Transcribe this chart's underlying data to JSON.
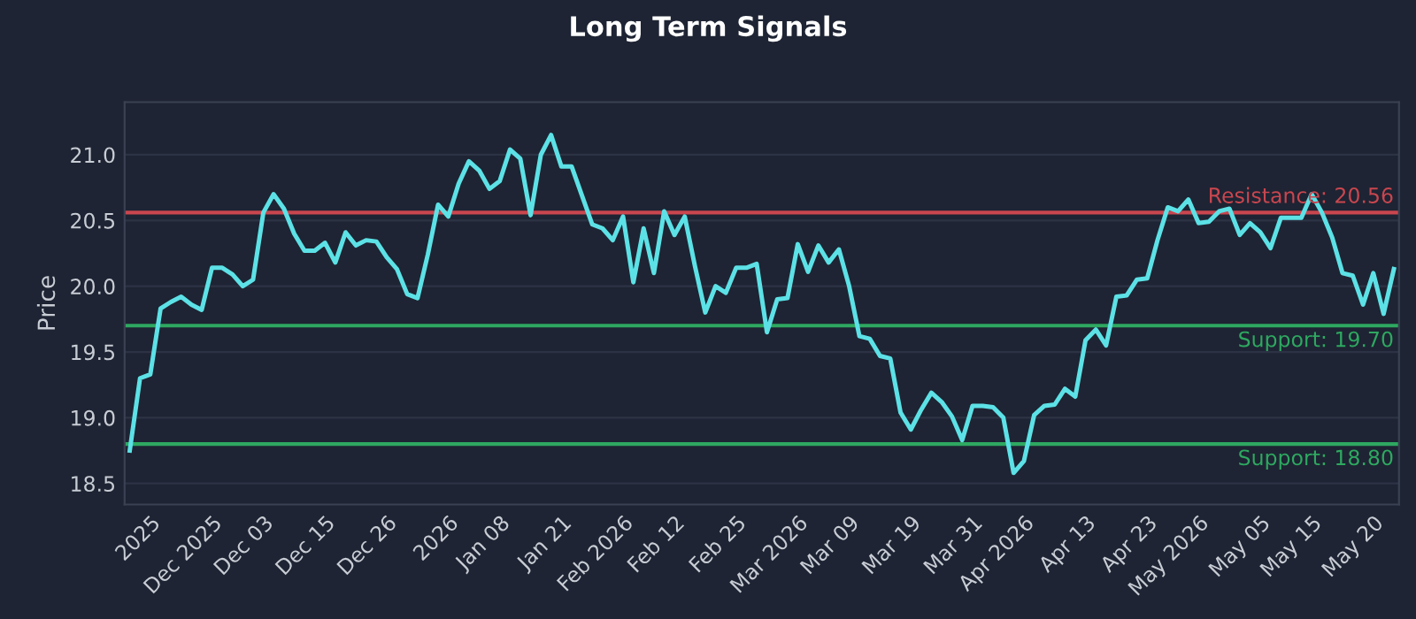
{
  "chart_data": {
    "type": "line",
    "title": "Long Term Signals",
    "ylabel": "Price",
    "categories": [
      null,
      null,
      "2025",
      null,
      null,
      null,
      null,
      null,
      "Dec 2025",
      null,
      null,
      null,
      null,
      "Dec 03",
      null,
      null,
      null,
      null,
      null,
      "Dec 15",
      null,
      null,
      null,
      null,
      null,
      "Dec 26",
      null,
      null,
      null,
      null,
      null,
      "2026",
      null,
      null,
      null,
      null,
      "Jan 08",
      null,
      null,
      null,
      null,
      null,
      "Jan 21",
      null,
      null,
      null,
      null,
      null,
      "Feb 2026",
      null,
      null,
      null,
      null,
      "Feb 12",
      null,
      null,
      null,
      null,
      null,
      "Feb 25",
      null,
      null,
      null,
      null,
      null,
      "Mar 2026",
      null,
      null,
      null,
      null,
      "Mar 09",
      null,
      null,
      null,
      null,
      null,
      "Mar 19",
      null,
      null,
      null,
      null,
      null,
      "Mar 31",
      null,
      null,
      null,
      null,
      "Apr 2026",
      null,
      null,
      null,
      null,
      null,
      "Apr 13",
      null,
      null,
      null,
      null,
      null,
      "Apr 23",
      null,
      null,
      null,
      null,
      "May 2026",
      null,
      null,
      null,
      null,
      null,
      "May 05",
      null,
      null,
      null,
      null,
      "May 15",
      null,
      null,
      null,
      null,
      null,
      "May 20",
      null,
      null
    ],
    "series": [
      {
        "color": "#5ce1e6",
        "values": [
          18.75,
          19.3,
          19.33,
          19.83,
          19.88,
          19.92,
          19.86,
          19.82,
          20.14,
          20.14,
          20.09,
          20.0,
          20.05,
          20.56,
          20.7,
          20.59,
          20.4,
          20.27,
          20.27,
          20.33,
          20.18,
          20.41,
          20.31,
          20.35,
          20.34,
          20.22,
          20.13,
          19.94,
          19.91,
          20.24,
          20.62,
          20.53,
          20.78,
          20.95,
          20.88,
          20.74,
          20.8,
          21.04,
          20.97,
          20.54,
          21.0,
          21.15,
          20.91,
          20.91,
          20.69,
          20.47,
          20.44,
          20.35,
          20.53,
          20.03,
          20.44,
          20.1,
          20.57,
          20.39,
          20.53,
          20.15,
          19.8,
          20.0,
          19.95,
          20.14,
          20.14,
          20.17,
          19.65,
          19.9,
          19.91,
          20.32,
          20.11,
          20.31,
          20.18,
          20.28,
          20.0,
          19.62,
          19.6,
          19.47,
          19.45,
          19.04,
          18.91,
          19.06,
          19.19,
          19.12,
          19.01,
          18.83,
          19.09,
          19.09,
          19.08,
          19.0,
          18.58,
          18.67,
          19.02,
          19.09,
          19.1,
          19.22,
          19.16,
          19.59,
          19.67,
          19.55,
          19.92,
          19.93,
          20.05,
          20.06,
          20.35,
          20.6,
          20.57,
          20.66,
          20.48,
          20.49,
          20.57,
          20.59,
          20.39,
          20.48,
          20.41,
          20.29,
          20.52,
          20.52,
          20.52,
          20.7,
          20.56,
          20.37,
          20.1,
          20.08,
          19.86,
          20.1,
          19.79,
          20.13
        ]
      }
    ],
    "ylim": [
      18.34,
      21.4
    ],
    "yticks": [
      {
        "value": 18.5,
        "label": "18.5"
      },
      {
        "value": 19.0,
        "label": "19.0"
      },
      {
        "value": 19.5,
        "label": "19.5"
      },
      {
        "value": 20.0,
        "label": "20.0"
      },
      {
        "value": 20.5,
        "label": "20.5"
      },
      {
        "value": 21.0,
        "label": "21.0"
      }
    ],
    "grid": "y",
    "legend": false,
    "marker": "none",
    "line_style": "solid",
    "ref_lines": [
      {
        "axis": "y",
        "value": 20.56,
        "label": "Resistance: 20.56",
        "color": "#c9464f"
      },
      {
        "axis": "y",
        "value": 19.7,
        "label": "Support: 19.70",
        "color": "#2ea860"
      },
      {
        "axis": "y",
        "value": 18.8,
        "label": "Support: 18.80",
        "color": "#2ea860"
      }
    ]
  }
}
